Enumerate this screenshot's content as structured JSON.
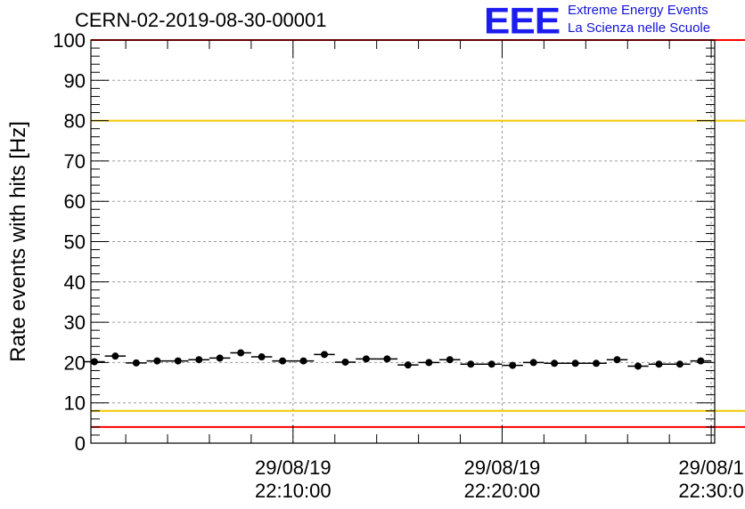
{
  "title": "CERN-02-2019-08-30-00001",
  "logo": {
    "mark": "EEE",
    "line1": "Extreme Energy Events",
    "line2": "La Scienza nelle Scuole",
    "color": "#1c1cf0"
  },
  "chart_data": {
    "type": "scatter",
    "title": "CERN-02-2019-08-30-00001",
    "xlabel": "",
    "ylabel": "Rate events with hits [Hz]",
    "ylim": [
      0,
      100
    ],
    "yticks": [
      0,
      10,
      20,
      30,
      40,
      50,
      60,
      70,
      80,
      90,
      100
    ],
    "xlim": [
      "2019-08-29 22:00:20",
      "2019-08-29 22:30:10"
    ],
    "xticks": [
      {
        "date": "29/08/19",
        "time": "22:10:00"
      },
      {
        "date": "29/08/19",
        "time": "22:20:00"
      },
      {
        "date": "29/08/1",
        "time": "22:30:0"
      }
    ],
    "grid": true,
    "error_bars": "horizontal",
    "reference_lines": [
      {
        "y": 100,
        "color": "#ff0000"
      },
      {
        "y": 80,
        "color": "#f0c800"
      },
      {
        "y": 8,
        "color": "#f0c800"
      },
      {
        "y": 4,
        "color": "#ff0000"
      }
    ],
    "series": [
      {
        "marker_color": "#000000",
        "points": [
          {
            "x": "22:00:30",
            "y": 20.2
          },
          {
            "x": "22:01:30",
            "y": 21.6
          },
          {
            "x": "22:02:30",
            "y": 19.9
          },
          {
            "x": "22:03:30",
            "y": 20.4
          },
          {
            "x": "22:04:30",
            "y": 20.4
          },
          {
            "x": "22:05:30",
            "y": 20.7
          },
          {
            "x": "22:06:30",
            "y": 21.1
          },
          {
            "x": "22:07:30",
            "y": 22.4
          },
          {
            "x": "22:08:30",
            "y": 21.4
          },
          {
            "x": "22:09:30",
            "y": 20.4
          },
          {
            "x": "22:10:30",
            "y": 20.4
          },
          {
            "x": "22:11:30",
            "y": 22.0
          },
          {
            "x": "22:12:30",
            "y": 20.1
          },
          {
            "x": "22:13:30",
            "y": 20.9
          },
          {
            "x": "22:14:30",
            "y": 20.9
          },
          {
            "x": "22:15:30",
            "y": 19.4
          },
          {
            "x": "22:16:30",
            "y": 20.0
          },
          {
            "x": "22:17:30",
            "y": 20.7
          },
          {
            "x": "22:18:30",
            "y": 19.6
          },
          {
            "x": "22:19:30",
            "y": 19.6
          },
          {
            "x": "22:20:30",
            "y": 19.3
          },
          {
            "x": "22:21:30",
            "y": 20.0
          },
          {
            "x": "22:22:30",
            "y": 19.8
          },
          {
            "x": "22:23:30",
            "y": 19.8
          },
          {
            "x": "22:24:30",
            "y": 19.8
          },
          {
            "x": "22:25:30",
            "y": 20.7
          },
          {
            "x": "22:26:30",
            "y": 19.1
          },
          {
            "x": "22:27:30",
            "y": 19.6
          },
          {
            "x": "22:28:30",
            "y": 19.6
          },
          {
            "x": "22:29:30",
            "y": 20.4
          }
        ]
      }
    ]
  }
}
